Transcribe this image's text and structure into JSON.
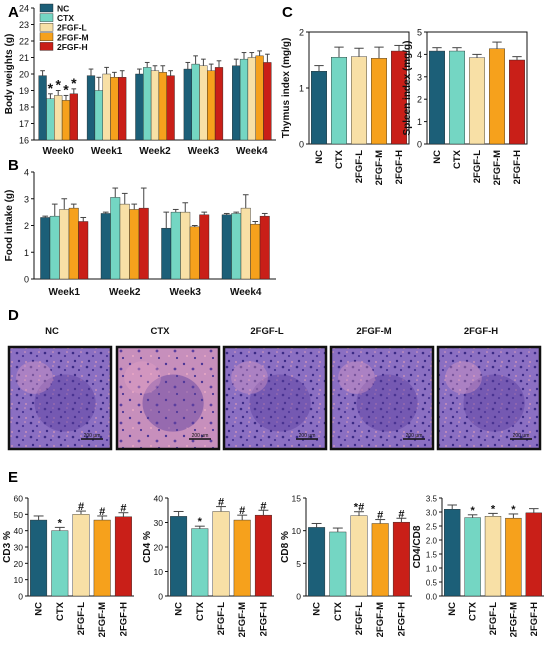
{
  "colors": {
    "NC": "#1c5f78",
    "CTX": "#74d6c3",
    "2FGF-L": "#f8e0a6",
    "2FGF-M": "#f6a11c",
    "2FGF-H": "#c91f18"
  },
  "groups": [
    "NC",
    "CTX",
    "2FGF-L",
    "2FGF-M",
    "2FGF-H"
  ],
  "panels": {
    "A": {
      "letter": "A",
      "ylabel": "Body weights (g)",
      "xlabels": [
        "Week0",
        "Week1",
        "Week2",
        "Week3",
        "Week4"
      ]
    },
    "B": {
      "letter": "B",
      "ylabel": "Food intake (g)",
      "xlabels": [
        "Week1",
        "Week2",
        "Week3",
        "Week4"
      ]
    },
    "C": {
      "letter": "C",
      "thymus_ylabel": "Thymus index (mg/g)",
      "spleen_ylabel": "Spleen index (mg/g)"
    },
    "D": {
      "letter": "D",
      "titles": [
        "NC",
        "CTX",
        "2FGF-L",
        "2FGF-M",
        "2FGF-H"
      ],
      "scale_label": "200 μm"
    },
    "E": {
      "letter": "E",
      "ylabels": [
        "CD3 %",
        "CD4 %",
        "CD8 %",
        "CD4/CD8"
      ]
    }
  },
  "chart_data": [
    {
      "id": "A",
      "type": "bar",
      "title": "",
      "ylabel": "Body weights (g)",
      "ylim": [
        16,
        24
      ],
      "yticks": [
        16,
        17,
        18,
        19,
        20,
        21,
        22,
        23,
        24
      ],
      "categories": [
        "Week0",
        "Week1",
        "Week2",
        "Week3",
        "Week4"
      ],
      "series": [
        {
          "name": "NC",
          "values": [
            19.9,
            19.9,
            20.0,
            20.3,
            20.5
          ],
          "errors": [
            0.3,
            0.4,
            0.3,
            0.4,
            0.4
          ]
        },
        {
          "name": "CTX",
          "values": [
            18.5,
            19.0,
            20.4,
            20.6,
            20.9
          ],
          "errors": [
            0.3,
            0.8,
            0.3,
            0.5,
            0.4
          ]
        },
        {
          "name": "2FGF-L",
          "values": [
            18.7,
            20.0,
            20.2,
            20.5,
            21.0
          ],
          "errors": [
            0.3,
            0.4,
            0.3,
            0.4,
            0.3
          ]
        },
        {
          "name": "2FGF-M",
          "values": [
            18.4,
            19.8,
            20.1,
            20.2,
            21.1
          ],
          "errors": [
            0.3,
            0.3,
            0.4,
            0.4,
            0.3
          ]
        },
        {
          "name": "2FGF-H",
          "values": [
            18.8,
            19.8,
            19.9,
            20.4,
            20.7
          ],
          "errors": [
            0.3,
            0.4,
            0.3,
            0.4,
            0.5
          ]
        }
      ],
      "annotations": [
        {
          "category": "Week0",
          "series": [
            "CTX",
            "2FGF-L",
            "2FGF-M",
            "2FGF-H"
          ],
          "text": "*"
        }
      ],
      "legend": "top-left"
    },
    {
      "id": "B",
      "type": "bar",
      "title": "",
      "ylabel": "Food intake (g)",
      "ylim": [
        0,
        4
      ],
      "yticks": [
        0,
        1,
        2,
        3,
        4
      ],
      "categories": [
        "Week1",
        "Week2",
        "Week3",
        "Week4"
      ],
      "series": [
        {
          "name": "NC",
          "values": [
            2.3,
            2.45,
            1.9,
            2.4
          ],
          "errors": [
            0.05,
            0.05,
            0.6,
            0.05
          ]
        },
        {
          "name": "CTX",
          "values": [
            2.35,
            3.05,
            2.5,
            2.45
          ],
          "errors": [
            0.45,
            0.35,
            0.1,
            0.05
          ]
        },
        {
          "name": "2FGF-L",
          "values": [
            2.6,
            2.8,
            2.5,
            2.65
          ],
          "errors": [
            0.4,
            0.4,
            0.35,
            0.5
          ]
        },
        {
          "name": "2FGF-M",
          "values": [
            2.65,
            2.6,
            1.95,
            2.05
          ],
          "errors": [
            0.15,
            0.2,
            0.05,
            0.1
          ]
        },
        {
          "name": "2FGF-H",
          "values": [
            2.15,
            2.65,
            2.4,
            2.35
          ],
          "errors": [
            0.15,
            0.75,
            0.1,
            0.1
          ]
        }
      ]
    },
    {
      "id": "C-thymus",
      "type": "bar",
      "title": "",
      "ylabel": "Thymus index (mg/g)",
      "ylim": [
        0,
        2
      ],
      "yticks": [
        0,
        1,
        2
      ],
      "categories": [
        "NC",
        "CTX",
        "2FGF-L",
        "2FGF-M",
        "2FGF-H"
      ],
      "values": [
        1.3,
        1.55,
        1.56,
        1.53,
        1.66
      ],
      "errors": [
        0.1,
        0.18,
        0.15,
        0.2,
        0.1
      ]
    },
    {
      "id": "C-spleen",
      "type": "bar",
      "title": "",
      "ylabel": "Spleen index (mg/g)",
      "ylim": [
        0,
        5
      ],
      "yticks": [
        0,
        1,
        2,
        3,
        4,
        5
      ],
      "categories": [
        "NC",
        "CTX",
        "2FGF-L",
        "2FGF-M",
        "2FGF-H"
      ],
      "values": [
        4.15,
        4.15,
        3.85,
        4.25,
        3.75
      ],
      "errors": [
        0.15,
        0.15,
        0.15,
        0.3,
        0.15
      ]
    },
    {
      "id": "E-CD3",
      "type": "bar",
      "title": "",
      "ylabel": "CD3 %",
      "ylim": [
        0,
        60
      ],
      "yticks": [
        0,
        10,
        20,
        30,
        40,
        50,
        60
      ],
      "categories": [
        "NC",
        "CTX",
        "2FGF-L",
        "2FGF-M",
        "2FGF-H"
      ],
      "values": [
        46.5,
        40,
        50,
        46.5,
        48.5
      ],
      "errors": [
        2.5,
        2,
        2,
        2.5,
        2.5
      ],
      "marks": [
        "",
        "*",
        "#",
        "#",
        "#"
      ]
    },
    {
      "id": "E-CD4",
      "type": "bar",
      "title": "",
      "ylabel": "CD4 %",
      "ylim": [
        0,
        40
      ],
      "yticks": [
        0,
        10,
        20,
        30,
        40
      ],
      "categories": [
        "NC",
        "CTX",
        "2FGF-L",
        "2FGF-M",
        "2FGF-H"
      ],
      "values": [
        32.5,
        27.5,
        34.5,
        31,
        33
      ],
      "errors": [
        2,
        1,
        2,
        2,
        2
      ],
      "marks": [
        "",
        "*",
        "#",
        "#",
        "#"
      ]
    },
    {
      "id": "E-CD8",
      "type": "bar",
      "title": "",
      "ylabel": "CD8 %",
      "ylim": [
        0,
        15
      ],
      "yticks": [
        0,
        5,
        10,
        15
      ],
      "categories": [
        "NC",
        "CTX",
        "2FGF-L",
        "2FGF-M",
        "2FGF-H"
      ],
      "values": [
        10.5,
        9.8,
        12.3,
        11.1,
        11.3
      ],
      "errors": [
        0.6,
        0.6,
        0.6,
        0.6,
        0.6
      ],
      "marks": [
        "",
        "",
        "*#",
        "#",
        "#"
      ]
    },
    {
      "id": "E-CD4CD8",
      "type": "bar",
      "title": "",
      "ylabel": "CD4/CD8",
      "ylim": [
        0,
        3.5
      ],
      "yticks": [
        0,
        0.5,
        1,
        1.5,
        2,
        2.5,
        3,
        3.5
      ],
      "categories": [
        "NC",
        "CTX",
        "2FGF-L",
        "2FGF-M",
        "2FGF-H"
      ],
      "values": [
        3.1,
        2.8,
        2.85,
        2.78,
        2.97
      ],
      "errors": [
        0.15,
        0.1,
        0.1,
        0.15,
        0.15
      ],
      "marks": [
        "",
        "*",
        "*",
        "*",
        ""
      ]
    }
  ]
}
